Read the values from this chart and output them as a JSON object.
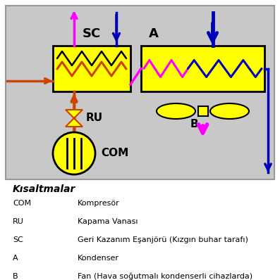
{
  "bg_diagram": "#c8c8c8",
  "bg_figure": "#ffffff",
  "yellow": "#ffff00",
  "orange_red": "#cc4400",
  "pink": "#ff00ff",
  "blue_dark": "#0000bb",
  "black": "#000000",
  "sc_label": "SC",
  "a_label": "A",
  "b_label": "B",
  "ru_label": "RU",
  "com_label": "COM",
  "legend_title": "Kısaltmalar",
  "legend_items": [
    [
      "COM",
      "Kompresör"
    ],
    [
      "RU",
      "Kapama Vanası"
    ],
    [
      "SC",
      "Geri Kazanım Eşanjörü (Kızgın buhar tarafı)"
    ],
    [
      "A",
      "Kondenser"
    ],
    [
      "B",
      "Fan (Hava soğutmalı kondenserli cihazlarda)"
    ]
  ]
}
